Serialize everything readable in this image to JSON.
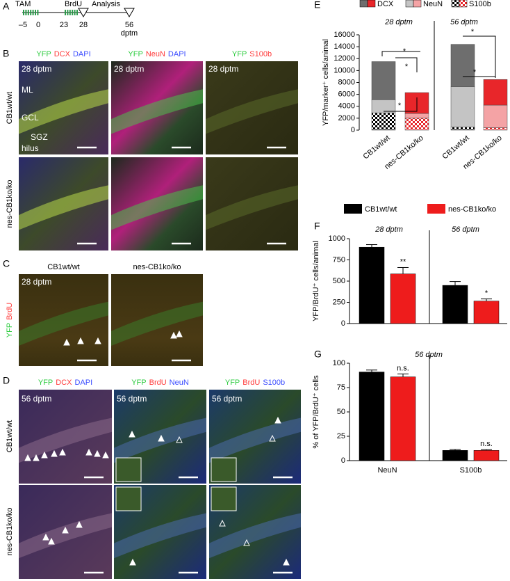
{
  "figure": {
    "panel_labels": [
      "A",
      "B",
      "C",
      "D",
      "E",
      "F",
      "G"
    ],
    "timeline": {
      "events": [
        "TAM",
        "BrdU",
        "Analysis"
      ],
      "ticks": [
        "–5",
        "0",
        "23",
        "28",
        "56"
      ],
      "unit": "dptm"
    },
    "B": {
      "headers": [
        [
          {
            "text": "YFP",
            "color": "#2ecc40"
          },
          {
            "text": "DCX",
            "color": "#ff3b3b"
          },
          {
            "text": "DAPI",
            "color": "#3a4cff"
          }
        ],
        [
          {
            "text": "YFP",
            "color": "#2ecc40"
          },
          {
            "text": "NeuN",
            "color": "#ff3b3b"
          },
          {
            "text": "DAPI",
            "color": "#3a4cff"
          }
        ],
        [
          {
            "text": "YFP",
            "color": "#2ecc40"
          },
          {
            "text": "S100b",
            "color": "#ff3b3b"
          }
        ]
      ],
      "rows": [
        "CB1wt/wt",
        "nes-CB1ko/ko"
      ],
      "timepoint": "28 dptm",
      "layers": [
        "ML",
        "GCL",
        "SGZ",
        "hilus"
      ]
    },
    "C": {
      "headers": [
        "CB1wt/wt",
        "nes-CB1ko/ko"
      ],
      "timepoint": "28 dptm",
      "side": [
        {
          "text": "YFP",
          "color": "#2ecc40"
        },
        {
          "text": "BrdU",
          "color": "#ff3b3b"
        }
      ]
    },
    "D": {
      "headers": [
        [
          {
            "text": "YFP",
            "color": "#2ecc40"
          },
          {
            "text": "DCX",
            "color": "#ff3b3b"
          },
          {
            "text": "DAPI",
            "color": "#3a4cff"
          }
        ],
        [
          {
            "text": "YFP",
            "color": "#2ecc40"
          },
          {
            "text": "BrdU",
            "color": "#ff3b3b"
          },
          {
            "text": "NeuN",
            "color": "#3a4cff"
          }
        ],
        [
          {
            "text": "YFP",
            "color": "#2ecc40"
          },
          {
            "text": "BrdU",
            "color": "#ff3b3b"
          },
          {
            "text": "S100b",
            "color": "#3a4cff"
          }
        ]
      ],
      "rows": [
        "CB1wt/wt",
        "nes-CB1ko/ko"
      ],
      "timepoint": "56 dptm"
    }
  },
  "chart_data": [
    {
      "type": "stacked-bar",
      "ylabel": "YFP/marker⁺ cells/animal",
      "groups": [
        "28 dptm",
        "56 dptm"
      ],
      "categories": [
        "CB1wt/wt",
        "nes-CB1ko/ko",
        "CB1wt/wt",
        "nes-CB1ko/ko"
      ],
      "series": [
        {
          "name": "DCX",
          "colors": [
            "#6e6e6e",
            "#e8262a",
            "#6e6e6e",
            "#e8262a"
          ],
          "values": [
            6400,
            3500,
            7100,
            4300
          ]
        },
        {
          "name": "NeuN",
          "colors": [
            "#c4c4c4",
            "#f4a3a5",
            "#c4c4c4",
            "#f4a3a5"
          ],
          "values": [
            2200,
            800,
            6800,
            3800
          ]
        },
        {
          "name": "S100b",
          "pattern": "dots",
          "colors": [
            "#000000",
            "#e8262a",
            "#000000",
            "#e8262a"
          ],
          "values": [
            2900,
            2000,
            500,
            400
          ]
        }
      ],
      "annotations": [
        "*",
        "*",
        "*",
        "*",
        "*"
      ],
      "ylim": [
        0,
        16000
      ],
      "yticks": [
        0,
        2000,
        4000,
        6000,
        8000,
        10000,
        12000,
        14000,
        16000
      ]
    },
    {
      "type": "bar",
      "ylabel": "YFP/BrdU⁺ cells/animal",
      "categories": [
        "28 dptm",
        "56 dptm"
      ],
      "series": [
        {
          "name": "CB1wt/wt",
          "color": "#000000",
          "values": [
            900,
            450
          ],
          "errors": [
            30,
            45
          ]
        },
        {
          "name": "nes-CB1ko/ko",
          "color": "#ee1c1c",
          "values": [
            585,
            265
          ],
          "errors": [
            75,
            25
          ]
        }
      ],
      "annotations": [
        "**",
        "*"
      ],
      "ylim": [
        0,
        1000
      ],
      "yticks": [
        0,
        250,
        500,
        750,
        1000
      ]
    },
    {
      "type": "bar",
      "title": "56 dptm",
      "ylabel": "% of YFP/BrdU⁺ cells",
      "categories": [
        "NeuN",
        "S100b"
      ],
      "series": [
        {
          "color": "#000000",
          "values": [
            91,
            10.5
          ],
          "errors": [
            2,
            1
          ]
        },
        {
          "color": "#ee1c1c",
          "values": [
            86,
            10.5
          ],
          "errors": [
            3,
            0.8
          ]
        }
      ],
      "annotations": [
        "n.s.",
        "n.s."
      ],
      "ylim": [
        0,
        100
      ],
      "yticks": [
        0,
        25,
        50,
        75,
        100
      ]
    }
  ]
}
